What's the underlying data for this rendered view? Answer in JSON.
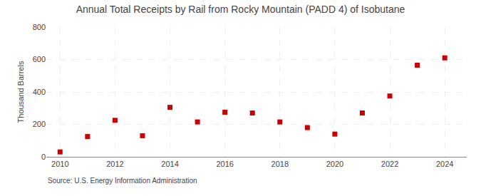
{
  "chart_data": {
    "type": "scatter",
    "title": "Annual Total Receipts by Rail from Rocky Mountain (PADD 4) of Isobutane",
    "ylabel": "Thousand Barrels",
    "annotations": [
      "Source: U.S. Energy Information Administration"
    ],
    "x": [
      2010,
      2011,
      2012,
      2013,
      2014,
      2015,
      2016,
      2017,
      2018,
      2019,
      2020,
      2021,
      2022,
      2023,
      2024
    ],
    "values": [
      30,
      125,
      225,
      130,
      305,
      215,
      275,
      270,
      215,
      180,
      140,
      270,
      375,
      565,
      610
    ],
    "color": "#cc0000",
    "marker": "square",
    "xlim": [
      2009.5,
      2024.8
    ],
    "xticks": [
      2010,
      2012,
      2014,
      2016,
      2018,
      2020,
      2022,
      2024
    ],
    "ylim": [
      0,
      800
    ],
    "yticks": [
      0,
      200,
      400,
      600,
      800
    ],
    "grid": true
  }
}
